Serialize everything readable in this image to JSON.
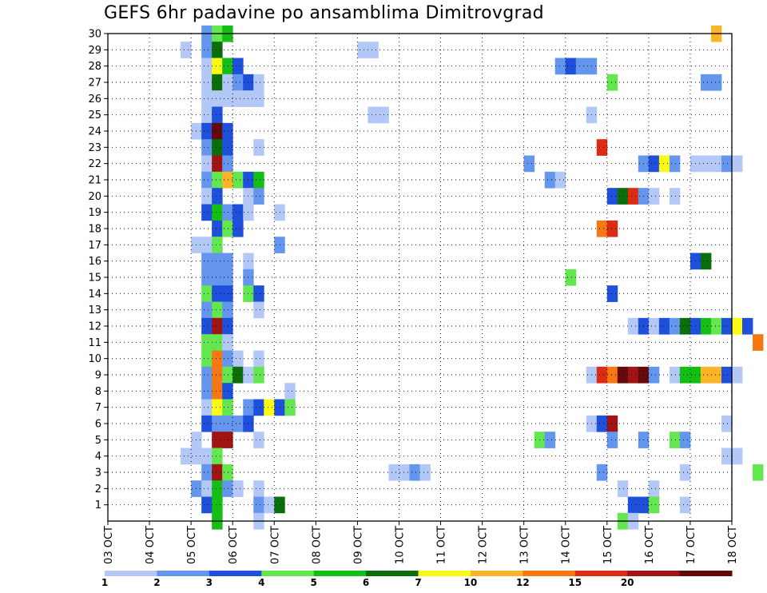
{
  "chart_data": {
    "type": "heatmap",
    "title": "GEFS 6hr padavine po ansamblima Dimitrovgrad",
    "xlabel": "",
    "ylabel": "",
    "x_ticks": [
      "03 OCT",
      "04 OCT",
      "05 OCT",
      "06 OCT",
      "07 OCT",
      "08 OCT",
      "09 OCT",
      "10 OCT",
      "11 OCT",
      "12 OCT",
      "13 OCT",
      "14 OCT",
      "15 OCT",
      "16 OCT",
      "17 OCT",
      "18 OCT"
    ],
    "y_ticks": [
      1,
      2,
      3,
      4,
      5,
      6,
      7,
      8,
      9,
      10,
      11,
      12,
      13,
      14,
      15,
      16,
      17,
      18,
      19,
      20,
      21,
      22,
      23,
      24,
      25,
      26,
      27,
      28,
      29,
      30
    ],
    "ylim": [
      0,
      30
    ],
    "grid": true,
    "legend_position": "bottom",
    "colorbar": {
      "colors": [
        "#b4c8f8",
        "#6496ee",
        "#1e50dc",
        "#64e650",
        "#14be14",
        "#0a6e0a",
        "#fafa14",
        "#fab428",
        "#f57814",
        "#dc2d14",
        "#a01414",
        "#640a0a"
      ],
      "labels": [
        "1",
        "2",
        "3",
        "4",
        "5",
        "6",
        "7",
        "10",
        "12",
        "15",
        "20"
      ]
    },
    "cells": [
      [
        2.25,
        30,
        2
      ],
      [
        2.5,
        30,
        4
      ],
      [
        2.75,
        30,
        5
      ],
      [
        14.5,
        30,
        8
      ],
      [
        1.75,
        29,
        1
      ],
      [
        2.25,
        29,
        2
      ],
      [
        2.5,
        29,
        6
      ],
      [
        6.0,
        29,
        1
      ],
      [
        6.25,
        29,
        1
      ],
      [
        2.25,
        28,
        1
      ],
      [
        2.5,
        28,
        7
      ],
      [
        2.75,
        28,
        5
      ],
      [
        3.0,
        28,
        3
      ],
      [
        10.75,
        28,
        2
      ],
      [
        11.0,
        28,
        3
      ],
      [
        11.25,
        28,
        2
      ],
      [
        11.5,
        28,
        2
      ],
      [
        2.25,
        27,
        1
      ],
      [
        2.5,
        27,
        6
      ],
      [
        2.75,
        27,
        1
      ],
      [
        3.0,
        27,
        2
      ],
      [
        3.25,
        27,
        3
      ],
      [
        3.5,
        27,
        1
      ],
      [
        12.0,
        27,
        4
      ],
      [
        14.25,
        27,
        2
      ],
      [
        14.5,
        27,
        2
      ],
      [
        2.25,
        26,
        1
      ],
      [
        2.5,
        26,
        1
      ],
      [
        2.75,
        26,
        1
      ],
      [
        3.0,
        26,
        1
      ],
      [
        3.25,
        26,
        1
      ],
      [
        3.5,
        26,
        1
      ],
      [
        2.25,
        25,
        1
      ],
      [
        2.5,
        25,
        3
      ],
      [
        6.25,
        25,
        1
      ],
      [
        6.5,
        25,
        1
      ],
      [
        11.5,
        25,
        1
      ],
      [
        2.0,
        24,
        1
      ],
      [
        2.25,
        24,
        3
      ],
      [
        2.5,
        24,
        12
      ],
      [
        2.75,
        24,
        3
      ],
      [
        2.25,
        23,
        2
      ],
      [
        2.5,
        23,
        6
      ],
      [
        2.75,
        23,
        3
      ],
      [
        3.5,
        23,
        1
      ],
      [
        11.75,
        23,
        10
      ],
      [
        2.25,
        22,
        1
      ],
      [
        2.5,
        22,
        11
      ],
      [
        2.75,
        22,
        2
      ],
      [
        10.0,
        22,
        2
      ],
      [
        12.75,
        22,
        2
      ],
      [
        13.0,
        22,
        3
      ],
      [
        13.25,
        22,
        7
      ],
      [
        13.5,
        22,
        2
      ],
      [
        14.0,
        22,
        1
      ],
      [
        14.25,
        22,
        1
      ],
      [
        14.5,
        22,
        1
      ],
      [
        14.75,
        22,
        2
      ],
      [
        15.0,
        22,
        1
      ],
      [
        2.25,
        21,
        2
      ],
      [
        2.5,
        21,
        4
      ],
      [
        2.75,
        21,
        8
      ],
      [
        3.0,
        21,
        4
      ],
      [
        3.25,
        21,
        3
      ],
      [
        3.5,
        21,
        5
      ],
      [
        10.5,
        21,
        2
      ],
      [
        10.75,
        21,
        1
      ],
      [
        2.25,
        20,
        1
      ],
      [
        2.5,
        20,
        3
      ],
      [
        3.25,
        20,
        1
      ],
      [
        3.5,
        20,
        2
      ],
      [
        12.0,
        20,
        3
      ],
      [
        12.25,
        20,
        6
      ],
      [
        12.5,
        20,
        10
      ],
      [
        12.75,
        20,
        2
      ],
      [
        13.0,
        20,
        1
      ],
      [
        13.5,
        20,
        1
      ],
      [
        2.25,
        19,
        3
      ],
      [
        2.5,
        19,
        5
      ],
      [
        2.75,
        19,
        2
      ],
      [
        3.0,
        19,
        3
      ],
      [
        3.25,
        19,
        1
      ],
      [
        4.0,
        19,
        1
      ],
      [
        2.5,
        18,
        3
      ],
      [
        2.75,
        18,
        4
      ],
      [
        3.0,
        18,
        3
      ],
      [
        11.75,
        18,
        9
      ],
      [
        12.0,
        18,
        10
      ],
      [
        2.0,
        17,
        1
      ],
      [
        2.25,
        17,
        1
      ],
      [
        2.5,
        17,
        4
      ],
      [
        4.0,
        17,
        2
      ],
      [
        2.25,
        16,
        2
      ],
      [
        2.5,
        16,
        2
      ],
      [
        2.75,
        16,
        2
      ],
      [
        3.25,
        16,
        1
      ],
      [
        14.0,
        16,
        3
      ],
      [
        14.25,
        16,
        6
      ],
      [
        2.25,
        15,
        2
      ],
      [
        2.5,
        15,
        2
      ],
      [
        2.75,
        15,
        2
      ],
      [
        3.25,
        15,
        2
      ],
      [
        11.0,
        15,
        4
      ],
      [
        2.25,
        14,
        4
      ],
      [
        2.5,
        14,
        3
      ],
      [
        2.75,
        14,
        3
      ],
      [
        3.25,
        14,
        4
      ],
      [
        3.5,
        14,
        3
      ],
      [
        12.0,
        14,
        3
      ],
      [
        2.25,
        13,
        2
      ],
      [
        2.5,
        13,
        4
      ],
      [
        2.75,
        13,
        2
      ],
      [
        3.5,
        13,
        1
      ],
      [
        2.25,
        12,
        3
      ],
      [
        2.5,
        12,
        11
      ],
      [
        2.75,
        12,
        3
      ],
      [
        12.5,
        12,
        1
      ],
      [
        12.75,
        12,
        3
      ],
      [
        13.0,
        12,
        1
      ],
      [
        13.25,
        12,
        3
      ],
      [
        13.5,
        12,
        2
      ],
      [
        13.75,
        12,
        6
      ],
      [
        14.0,
        12,
        3
      ],
      [
        14.25,
        12,
        5
      ],
      [
        14.5,
        12,
        4
      ],
      [
        14.75,
        12,
        3
      ],
      [
        15.0,
        12,
        7
      ],
      [
        15.25,
        12,
        3
      ],
      [
        2.25,
        11,
        4
      ],
      [
        2.5,
        11,
        4
      ],
      [
        2.75,
        11,
        1
      ],
      [
        15.5,
        11,
        9
      ],
      [
        2.25,
        10,
        4
      ],
      [
        2.5,
        10,
        9
      ],
      [
        2.75,
        10,
        2
      ],
      [
        3.0,
        10,
        1
      ],
      [
        3.5,
        10,
        1
      ],
      [
        2.25,
        9,
        2
      ],
      [
        2.5,
        9,
        9
      ],
      [
        2.75,
        9,
        4
      ],
      [
        3.0,
        9,
        6
      ],
      [
        3.25,
        9,
        1
      ],
      [
        3.5,
        9,
        4
      ],
      [
        11.5,
        9,
        1
      ],
      [
        11.75,
        9,
        10
      ],
      [
        12.0,
        9,
        9
      ],
      [
        12.25,
        9,
        12
      ],
      [
        12.5,
        9,
        11
      ],
      [
        12.75,
        9,
        12
      ],
      [
        13.0,
        9,
        2
      ],
      [
        13.5,
        9,
        1
      ],
      [
        13.75,
        9,
        5
      ],
      [
        14.0,
        9,
        5
      ],
      [
        14.25,
        9,
        8
      ],
      [
        14.5,
        9,
        8
      ],
      [
        14.75,
        9,
        3
      ],
      [
        15.0,
        9,
        1
      ],
      [
        2.25,
        8,
        2
      ],
      [
        2.5,
        8,
        9
      ],
      [
        2.75,
        8,
        3
      ],
      [
        4.25,
        8,
        1
      ],
      [
        2.25,
        7,
        1
      ],
      [
        2.5,
        7,
        7
      ],
      [
        2.75,
        7,
        4
      ],
      [
        3.25,
        7,
        2
      ],
      [
        3.5,
        7,
        3
      ],
      [
        3.75,
        7,
        7
      ],
      [
        4.0,
        7,
        3
      ],
      [
        4.25,
        7,
        4
      ],
      [
        2.25,
        6,
        3
      ],
      [
        2.5,
        6,
        2
      ],
      [
        2.75,
        6,
        2
      ],
      [
        3.0,
        6,
        2
      ],
      [
        3.25,
        6,
        3
      ],
      [
        11.5,
        6,
        1
      ],
      [
        11.75,
        6,
        3
      ],
      [
        12.0,
        6,
        11
      ],
      [
        14.75,
        6,
        1
      ],
      [
        2.0,
        5,
        1
      ],
      [
        2.5,
        5,
        11
      ],
      [
        2.75,
        5,
        11
      ],
      [
        3.5,
        5,
        1
      ],
      [
        10.25,
        5,
        4
      ],
      [
        10.5,
        5,
        2
      ],
      [
        12.0,
        5,
        2
      ],
      [
        12.75,
        5,
        2
      ],
      [
        13.5,
        5,
        4
      ],
      [
        13.75,
        5,
        2
      ],
      [
        1.75,
        4,
        1
      ],
      [
        2.0,
        4,
        1
      ],
      [
        2.25,
        4,
        1
      ],
      [
        2.5,
        4,
        4
      ],
      [
        14.75,
        4,
        1
      ],
      [
        15.0,
        4,
        1
      ],
      [
        2.25,
        3,
        2
      ],
      [
        2.5,
        3,
        11
      ],
      [
        2.75,
        3,
        4
      ],
      [
        6.75,
        3,
        1
      ],
      [
        7.0,
        3,
        1
      ],
      [
        7.25,
        3,
        2
      ],
      [
        7.5,
        3,
        1
      ],
      [
        11.75,
        3,
        2
      ],
      [
        13.75,
        3,
        1
      ],
      [
        15.5,
        3,
        4
      ],
      [
        2.0,
        2,
        2
      ],
      [
        2.25,
        2,
        1
      ],
      [
        2.5,
        2,
        5
      ],
      [
        2.75,
        2,
        2
      ],
      [
        3.0,
        2,
        1
      ],
      [
        3.5,
        2,
        1
      ],
      [
        12.25,
        2,
        1
      ],
      [
        13.0,
        2,
        1
      ],
      [
        2.25,
        1,
        3
      ],
      [
        2.5,
        1,
        5
      ],
      [
        3.5,
        1,
        2
      ],
      [
        3.75,
        1,
        1
      ],
      [
        4.0,
        1,
        6
      ],
      [
        12.5,
        1,
        3
      ],
      [
        12.75,
        1,
        3
      ],
      [
        13.0,
        1,
        4
      ],
      [
        13.75,
        1,
        1
      ],
      [
        2.5,
        0,
        5
      ],
      [
        3.5,
        0,
        1
      ],
      [
        12.25,
        0,
        4
      ],
      [
        12.5,
        0,
        1
      ]
    ]
  }
}
